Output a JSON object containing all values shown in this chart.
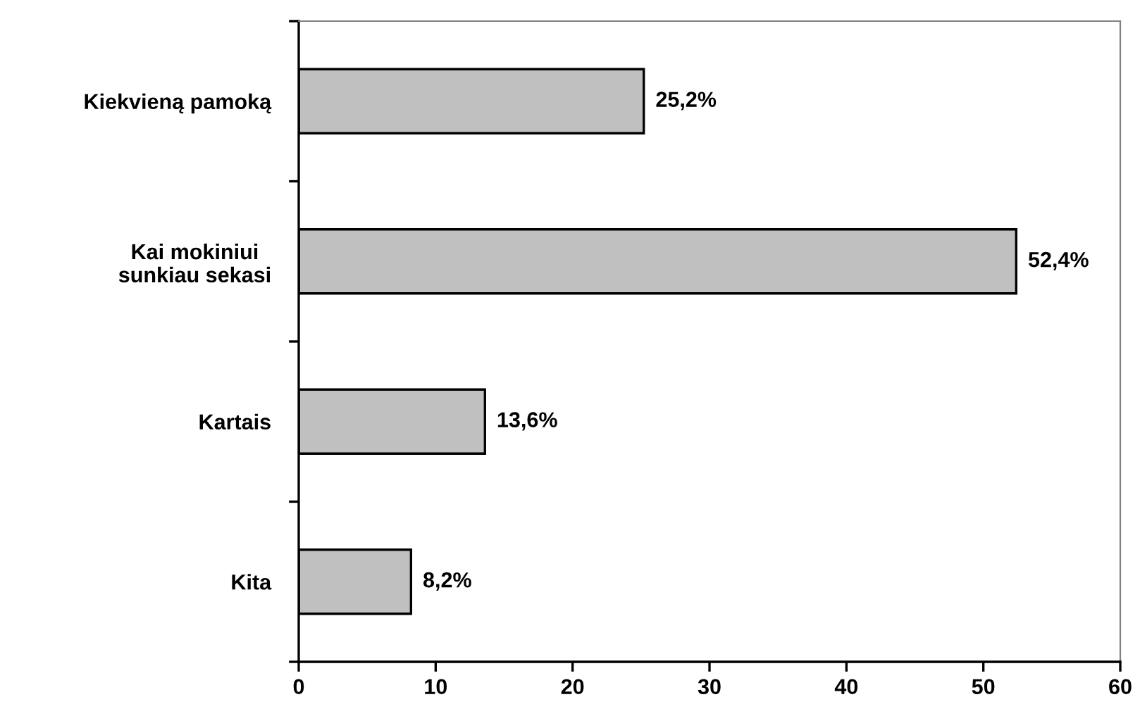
{
  "chart_data": {
    "type": "bar",
    "orientation": "horizontal",
    "categories": [
      "Kiekvieną pamoką",
      "Kai mokiniui\nsunkiau sekasi",
      "Kartais",
      "Kita"
    ],
    "values": [
      25.2,
      52.4,
      13.6,
      8.2
    ],
    "value_labels": [
      "25,2%",
      "52,4%",
      "13,6%",
      "8,2%"
    ],
    "color": "#c0c0c0",
    "xlim": [
      0,
      60
    ],
    "xticks": [
      0,
      10,
      20,
      30,
      40,
      50,
      60
    ],
    "grid": false,
    "legend": false
  }
}
